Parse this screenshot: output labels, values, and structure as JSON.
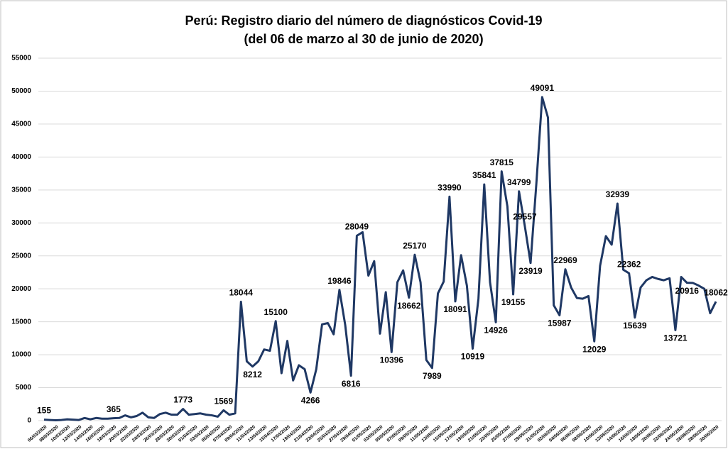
{
  "chart_data": {
    "type": "line",
    "title": "Perú: Registro diario del número de diagnósticos Covid-19",
    "subtitle": "(del 06 de marzo al 30 de junio de 2020)",
    "categories": [
      "06/03/2020",
      null,
      "08/03/2020",
      null,
      "10/03/2020",
      null,
      "12/03/2020",
      null,
      "14/03/2020",
      null,
      "16/03/2020",
      null,
      "18/03/2020",
      null,
      "20/03/2020",
      null,
      "22/03/2020",
      null,
      "24/03/2020",
      null,
      "26/03/2020",
      null,
      "28/03/2020",
      null,
      "30/03/2020",
      null,
      "01/04/2020",
      null,
      "03/04/2020",
      null,
      "05/04/2020",
      null,
      "07/04/2020",
      null,
      "09/04/2020",
      null,
      "11/04/2020",
      null,
      "13/04/2020",
      null,
      "15/04/2020",
      null,
      "17/04/2020",
      null,
      "19/04/2020",
      null,
      "21/04/2020",
      null,
      "23/04/2020",
      null,
      "25/04/2020",
      null,
      "27/04/2020",
      null,
      "29/04/2020",
      null,
      "01/05/2020",
      null,
      "03/05/2020",
      null,
      "05/05/2020",
      null,
      "07/05/2020",
      null,
      "09/05/2020",
      null,
      "11/05/2020",
      null,
      "13/05/2020",
      null,
      "15/05/2020",
      null,
      "17/05/2020",
      null,
      "19/05/2020",
      null,
      "21/05/2020",
      null,
      "23/05/2020",
      null,
      "25/05/2020",
      null,
      "27/05/2020",
      null,
      "29/05/2020",
      null,
      "31/05/2020",
      null,
      "02/06/2020",
      null,
      "04/06/2020",
      null,
      "06/06/2020",
      null,
      "08/06/2020",
      null,
      "10/06/2020",
      null,
      "12/06/2020",
      null,
      "14/06/2020",
      null,
      "16/06/2020",
      null,
      "18/06/2020",
      null,
      "20/06/2020",
      null,
      "22/06/2020",
      null,
      "24/06/2020",
      null,
      "26/06/2020",
      null,
      "28/06/2020",
      null,
      "30/06/2020"
    ],
    "series": [
      {
        "name": "Diagnósticos",
        "color": "#1f3864",
        "values": [
          155,
          100,
          50,
          100,
          200,
          150,
          100,
          400,
          200,
          400,
          300,
          300,
          365,
          400,
          800,
          500,
          700,
          1200,
          500,
          400,
          1000,
          1200,
          900,
          900,
          1773,
          900,
          1000,
          1100,
          900,
          800,
          600,
          1569,
          900,
          1100,
          18044,
          9000,
          8212,
          9000,
          10800,
          10600,
          15100,
          7200,
          12100,
          6100,
          8400,
          7800,
          4266,
          7800,
          14600,
          14800,
          13100,
          19846,
          14500,
          6816,
          28049,
          28600,
          22000,
          24200,
          13200,
          19500,
          10396,
          21000,
          22800,
          18662,
          25170,
          21000,
          9200,
          7989,
          19300,
          21100,
          33990,
          18091,
          25100,
          20500,
          10919,
          18500,
          35841,
          21000,
          14926,
          37815,
          32500,
          19155,
          34799,
          29557,
          23919,
          36000,
          49091,
          46000,
          17500,
          15987,
          22969,
          20200,
          18600,
          18500,
          18900,
          12029,
          23500,
          28000,
          26700,
          32939,
          22900,
          22362,
          15639,
          20200,
          21300,
          21800,
          21500,
          21300,
          21600,
          13721,
          21800,
          20916,
          20900,
          20500,
          20000,
          16300,
          18062
        ],
        "value_labels": [
          "155",
          null,
          null,
          null,
          null,
          null,
          null,
          null,
          null,
          null,
          null,
          null,
          "365",
          null,
          null,
          null,
          null,
          null,
          null,
          null,
          null,
          null,
          null,
          null,
          "1773",
          null,
          null,
          null,
          null,
          null,
          null,
          "1569",
          null,
          null,
          "18044",
          null,
          "8212",
          null,
          null,
          null,
          "15100",
          null,
          null,
          null,
          null,
          null,
          "4266",
          null,
          null,
          null,
          null,
          "19846",
          null,
          "6816",
          "28049",
          null,
          null,
          null,
          null,
          null,
          "10396",
          null,
          null,
          "18662",
          "25170",
          null,
          null,
          "7989",
          null,
          null,
          "33990",
          "18091",
          null,
          null,
          "10919",
          null,
          "35841",
          null,
          "14926",
          "37815",
          null,
          "19155",
          "34799",
          "29557",
          "23919",
          null,
          "49091",
          null,
          null,
          "15987",
          "22969",
          null,
          null,
          null,
          null,
          "12029",
          null,
          null,
          null,
          "32939",
          null,
          "22362",
          "15639",
          null,
          null,
          null,
          null,
          null,
          null,
          "13721",
          null,
          "20916",
          null,
          null,
          null,
          null,
          "18062"
        ]
      }
    ],
    "ylim": [
      0,
      55000
    ],
    "yticks": [
      0,
      5000,
      10000,
      15000,
      20000,
      25000,
      30000,
      35000,
      40000,
      45000,
      50000,
      55000
    ],
    "grid": true
  }
}
